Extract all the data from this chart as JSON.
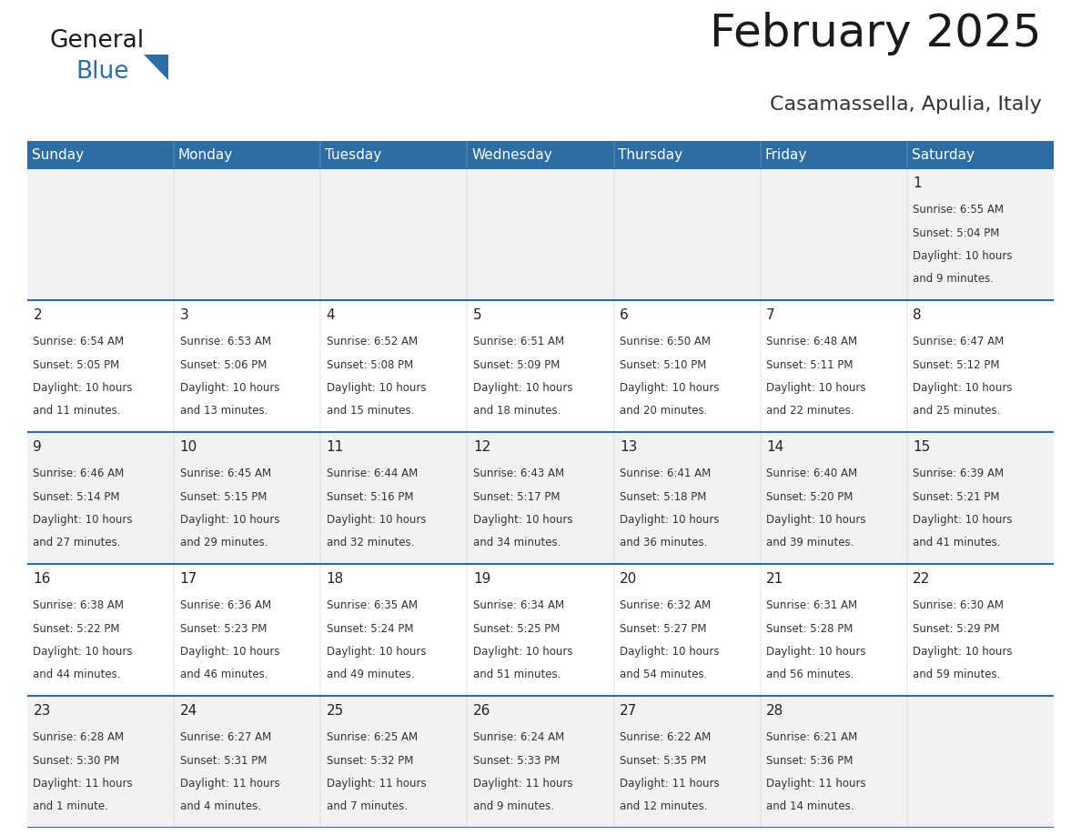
{
  "title": "February 2025",
  "subtitle": "Casamassella, Apulia, Italy",
  "header_bg": "#2E6DA4",
  "header_text": "#FFFFFF",
  "row_bg": [
    "#F2F2F2",
    "#FFFFFF",
    "#F2F2F2",
    "#FFFFFF",
    "#F2F2F2"
  ],
  "cell_text": "#333333",
  "border_color": "#2E6DA4",
  "days_of_week": [
    "Sunday",
    "Monday",
    "Tuesday",
    "Wednesday",
    "Thursday",
    "Friday",
    "Saturday"
  ],
  "calendar_data": [
    [
      null,
      null,
      null,
      null,
      null,
      null,
      {
        "day": 1,
        "sunrise": "6:55 AM",
        "sunset": "5:04 PM",
        "daylight": "10 hours\nand 9 minutes."
      }
    ],
    [
      {
        "day": 2,
        "sunrise": "6:54 AM",
        "sunset": "5:05 PM",
        "daylight": "10 hours\nand 11 minutes."
      },
      {
        "day": 3,
        "sunrise": "6:53 AM",
        "sunset": "5:06 PM",
        "daylight": "10 hours\nand 13 minutes."
      },
      {
        "day": 4,
        "sunrise": "6:52 AM",
        "sunset": "5:08 PM",
        "daylight": "10 hours\nand 15 minutes."
      },
      {
        "day": 5,
        "sunrise": "6:51 AM",
        "sunset": "5:09 PM",
        "daylight": "10 hours\nand 18 minutes."
      },
      {
        "day": 6,
        "sunrise": "6:50 AM",
        "sunset": "5:10 PM",
        "daylight": "10 hours\nand 20 minutes."
      },
      {
        "day": 7,
        "sunrise": "6:48 AM",
        "sunset": "5:11 PM",
        "daylight": "10 hours\nand 22 minutes."
      },
      {
        "day": 8,
        "sunrise": "6:47 AM",
        "sunset": "5:12 PM",
        "daylight": "10 hours\nand 25 minutes."
      }
    ],
    [
      {
        "day": 9,
        "sunrise": "6:46 AM",
        "sunset": "5:14 PM",
        "daylight": "10 hours\nand 27 minutes."
      },
      {
        "day": 10,
        "sunrise": "6:45 AM",
        "sunset": "5:15 PM",
        "daylight": "10 hours\nand 29 minutes."
      },
      {
        "day": 11,
        "sunrise": "6:44 AM",
        "sunset": "5:16 PM",
        "daylight": "10 hours\nand 32 minutes."
      },
      {
        "day": 12,
        "sunrise": "6:43 AM",
        "sunset": "5:17 PM",
        "daylight": "10 hours\nand 34 minutes."
      },
      {
        "day": 13,
        "sunrise": "6:41 AM",
        "sunset": "5:18 PM",
        "daylight": "10 hours\nand 36 minutes."
      },
      {
        "day": 14,
        "sunrise": "6:40 AM",
        "sunset": "5:20 PM",
        "daylight": "10 hours\nand 39 minutes."
      },
      {
        "day": 15,
        "sunrise": "6:39 AM",
        "sunset": "5:21 PM",
        "daylight": "10 hours\nand 41 minutes."
      }
    ],
    [
      {
        "day": 16,
        "sunrise": "6:38 AM",
        "sunset": "5:22 PM",
        "daylight": "10 hours\nand 44 minutes."
      },
      {
        "day": 17,
        "sunrise": "6:36 AM",
        "sunset": "5:23 PM",
        "daylight": "10 hours\nand 46 minutes."
      },
      {
        "day": 18,
        "sunrise": "6:35 AM",
        "sunset": "5:24 PM",
        "daylight": "10 hours\nand 49 minutes."
      },
      {
        "day": 19,
        "sunrise": "6:34 AM",
        "sunset": "5:25 PM",
        "daylight": "10 hours\nand 51 minutes."
      },
      {
        "day": 20,
        "sunrise": "6:32 AM",
        "sunset": "5:27 PM",
        "daylight": "10 hours\nand 54 minutes."
      },
      {
        "day": 21,
        "sunrise": "6:31 AM",
        "sunset": "5:28 PM",
        "daylight": "10 hours\nand 56 minutes."
      },
      {
        "day": 22,
        "sunrise": "6:30 AM",
        "sunset": "5:29 PM",
        "daylight": "10 hours\nand 59 minutes."
      }
    ],
    [
      {
        "day": 23,
        "sunrise": "6:28 AM",
        "sunset": "5:30 PM",
        "daylight": "11 hours\nand 1 minute."
      },
      {
        "day": 24,
        "sunrise": "6:27 AM",
        "sunset": "5:31 PM",
        "daylight": "11 hours\nand 4 minutes."
      },
      {
        "day": 25,
        "sunrise": "6:25 AM",
        "sunset": "5:32 PM",
        "daylight": "11 hours\nand 7 minutes."
      },
      {
        "day": 26,
        "sunrise": "6:24 AM",
        "sunset": "5:33 PM",
        "daylight": "11 hours\nand 9 minutes."
      },
      {
        "day": 27,
        "sunrise": "6:22 AM",
        "sunset": "5:35 PM",
        "daylight": "11 hours\nand 12 minutes."
      },
      {
        "day": 28,
        "sunrise": "6:21 AM",
        "sunset": "5:36 PM",
        "daylight": "11 hours\nand 14 minutes."
      },
      null
    ]
  ],
  "header_fontsize": 11,
  "day_number_fontsize": 11,
  "cell_text_fontsize": 8.5,
  "title_fontsize": 36,
  "subtitle_fontsize": 16
}
